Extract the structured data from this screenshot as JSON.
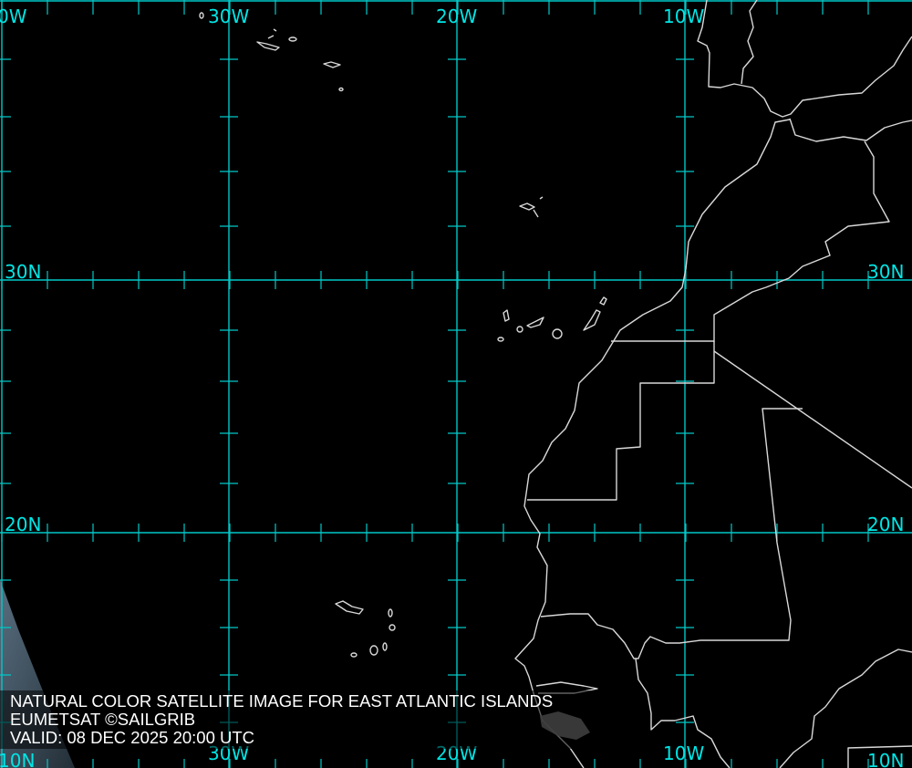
{
  "map": {
    "caption": {
      "title": "NATURAL COLOR SATELLITE IMAGE FOR EAST ATLANTIC ISLANDS",
      "credit": "EUMETSAT ©SAILGRIB",
      "valid": "VALID:  08 DEC 2025 20:00 UTC"
    },
    "labels": {
      "top": [
        "0W",
        "30W",
        "20W",
        "10W"
      ],
      "bottom": [
        "10N",
        "30W",
        "20W",
        "10W",
        "10N"
      ],
      "left": [
        "30N",
        "20N"
      ],
      "right": [
        "30N",
        "20N"
      ]
    },
    "colors": {
      "grid": "#00c8c8",
      "label": "#00e5e5",
      "coastline": "#d8d8d8",
      "background": "#000000"
    }
  }
}
